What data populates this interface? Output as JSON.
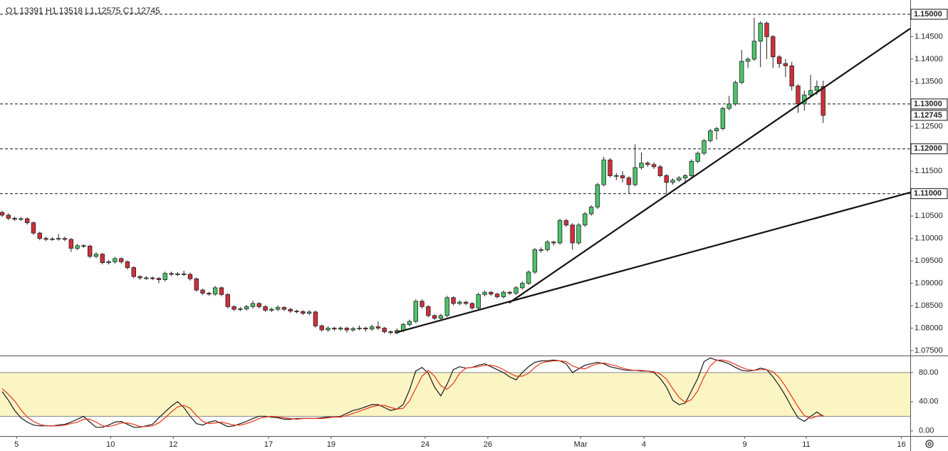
{
  "chart_data": {
    "type": "candlestick",
    "ohlc_legend": "O1.13391  H1.13518  L1.12575  C1.12745",
    "candles": [
      [
        1.1058,
        1.1062,
        1.1048,
        1.1052
      ],
      [
        1.1052,
        1.1056,
        1.1041,
        1.1045
      ],
      [
        1.1045,
        1.1049,
        1.1039,
        1.1043
      ],
      [
        1.1043,
        1.1048,
        1.1039,
        1.1044
      ],
      [
        1.1044,
        1.1047,
        1.1031,
        1.1035
      ],
      [
        1.1035,
        1.1038,
        1.1008,
        1.1012
      ],
      [
        1.1012,
        1.1015,
        1.0996,
        1.1
      ],
      [
        1.1,
        1.1004,
        1.0994,
        1.0998
      ],
      [
        1.0998,
        1.1003,
        1.0995,
        1.0999
      ],
      [
        1.0999,
        1.101,
        1.0995,
        1.1
      ],
      [
        1.1,
        1.1004,
        1.0994,
        1.0998
      ],
      [
        1.0998,
        1.1001,
        1.097,
        1.0978
      ],
      [
        1.0978,
        1.0988,
        1.0974,
        1.0984
      ],
      [
        1.0984,
        1.0987,
        1.0979,
        1.0983
      ],
      [
        1.0983,
        1.0986,
        1.0956,
        1.096
      ],
      [
        1.096,
        1.0969,
        1.0956,
        1.0965
      ],
      [
        1.0965,
        1.0968,
        1.0942,
        1.0946
      ],
      [
        1.0946,
        1.0952,
        1.0942,
        1.0948
      ],
      [
        1.0948,
        1.0959,
        1.0944,
        1.0955
      ],
      [
        1.0955,
        1.0958,
        1.0944,
        1.0948
      ],
      [
        1.0948,
        1.0951,
        1.0931,
        1.0935
      ],
      [
        1.0935,
        1.0938,
        1.0911,
        1.0915
      ],
      [
        1.0915,
        1.0918,
        1.0908,
        1.0912
      ],
      [
        1.0912,
        1.0916,
        1.0908,
        1.0912
      ],
      [
        1.0912,
        1.0915,
        1.0907,
        1.0911
      ],
      [
        1.0911,
        1.0914,
        1.09,
        1.0908
      ],
      [
        1.0908,
        1.0926,
        1.0904,
        1.0922
      ],
      [
        1.0922,
        1.0926,
        1.0916,
        1.092
      ],
      [
        1.092,
        1.0925,
        1.0916,
        1.0921
      ],
      [
        1.0921,
        1.0928,
        1.0916,
        1.092
      ],
      [
        1.092,
        1.0924,
        1.0906,
        1.091
      ],
      [
        1.091,
        1.0913,
        1.0881,
        1.0885
      ],
      [
        1.0885,
        1.0888,
        1.0874,
        1.0878
      ],
      [
        1.0878,
        1.0881,
        1.0872,
        1.0876
      ],
      [
        1.0876,
        1.0894,
        1.0872,
        1.089
      ],
      [
        1.089,
        1.0893,
        1.0871,
        1.0875
      ],
      [
        1.0875,
        1.0878,
        1.0844,
        1.0848
      ],
      [
        1.0848,
        1.0851,
        1.0838,
        1.0842
      ],
      [
        1.0842,
        1.0847,
        1.0838,
        1.0843
      ],
      [
        1.0843,
        1.0852,
        1.0839,
        1.0848
      ],
      [
        1.0848,
        1.0861,
        1.0844,
        1.0855
      ],
      [
        1.0855,
        1.0858,
        1.0844,
        1.0848
      ],
      [
        1.0848,
        1.0851,
        1.0836,
        1.084
      ],
      [
        1.084,
        1.0846,
        1.0836,
        1.0842
      ],
      [
        1.0842,
        1.0851,
        1.0838,
        1.0846
      ],
      [
        1.0846,
        1.0849,
        1.0838,
        1.0842
      ],
      [
        1.0842,
        1.0845,
        1.0834,
        1.0838
      ],
      [
        1.0838,
        1.0841,
        1.0833,
        1.0837
      ],
      [
        1.0837,
        1.084,
        1.0829,
        1.0833
      ],
      [
        1.0833,
        1.084,
        1.0829,
        1.0836
      ],
      [
        1.0836,
        1.0839,
        1.0801,
        1.0805
      ],
      [
        1.0805,
        1.0808,
        1.0792,
        1.0796
      ],
      [
        1.0796,
        1.0804,
        1.0792,
        1.08
      ],
      [
        1.08,
        1.0803,
        1.0794,
        1.0798
      ],
      [
        1.0798,
        1.0804,
        1.0794,
        1.08
      ],
      [
        1.08,
        1.0803,
        1.079,
        1.0796
      ],
      [
        1.0796,
        1.0803,
        1.0792,
        1.0799
      ],
      [
        1.0799,
        1.0806,
        1.0795,
        1.08
      ],
      [
        1.08,
        1.0803,
        1.0792,
        1.0798
      ],
      [
        1.0798,
        1.0808,
        1.0794,
        1.0803
      ],
      [
        1.0803,
        1.0815,
        1.0796,
        1.08
      ],
      [
        1.08,
        1.0803,
        1.0788,
        1.0792
      ],
      [
        1.0792,
        1.0795,
        1.0786,
        1.079
      ],
      [
        1.079,
        1.0799,
        1.0786,
        1.0795
      ],
      [
        1.0795,
        1.0812,
        1.0791,
        1.0808
      ],
      [
        1.0808,
        1.0819,
        1.0804,
        1.0815
      ],
      [
        1.0815,
        1.0864,
        1.0811,
        1.086
      ],
      [
        1.086,
        1.0864,
        1.0844,
        1.0848
      ],
      [
        1.0848,
        1.0851,
        1.0824,
        1.0828
      ],
      [
        1.0828,
        1.0831,
        1.0818,
        1.0822
      ],
      [
        1.0822,
        1.0832,
        1.0818,
        1.0828
      ],
      [
        1.0828,
        1.0872,
        1.0824,
        1.0868
      ],
      [
        1.0868,
        1.0871,
        1.0851,
        1.0855
      ],
      [
        1.0855,
        1.0862,
        1.0851,
        1.0858
      ],
      [
        1.0858,
        1.0861,
        1.0851,
        1.0855
      ],
      [
        1.0855,
        1.0858,
        1.0841,
        1.0845
      ],
      [
        1.0845,
        1.0879,
        1.0841,
        1.0875
      ],
      [
        1.0875,
        1.0884,
        1.0871,
        1.088
      ],
      [
        1.088,
        1.0883,
        1.0872,
        1.0876
      ],
      [
        1.0876,
        1.0879,
        1.0866,
        1.087
      ],
      [
        1.087,
        1.0884,
        1.0866,
        1.088
      ],
      [
        1.088,
        1.0883,
        1.0874,
        1.0878
      ],
      [
        1.0878,
        1.0894,
        1.0874,
        1.089
      ],
      [
        1.089,
        1.0904,
        1.0886,
        1.09
      ],
      [
        1.09,
        1.0929,
        1.0896,
        1.0925
      ],
      [
        1.0925,
        1.0979,
        1.0921,
        1.0975
      ],
      [
        1.0975,
        1.098,
        1.0968,
        1.0975
      ],
      [
        1.0975,
        1.0996,
        1.0971,
        1.0992
      ],
      [
        1.0992,
        1.0995,
        1.0984,
        1.099
      ],
      [
        1.099,
        1.1044,
        1.0986,
        1.104
      ],
      [
        1.104,
        1.1044,
        1.1026,
        1.103
      ],
      [
        1.103,
        1.1034,
        1.0975,
        1.099
      ],
      [
        1.099,
        1.1034,
        1.0986,
        1.103
      ],
      [
        1.103,
        1.1059,
        1.1026,
        1.1055
      ],
      [
        1.1055,
        1.1074,
        1.1051,
        1.107
      ],
      [
        1.107,
        1.1124,
        1.1066,
        1.112
      ],
      [
        1.112,
        1.1182,
        1.1116,
        1.1175
      ],
      [
        1.1175,
        1.1179,
        1.1136,
        1.114
      ],
      [
        1.114,
        1.1146,
        1.113,
        1.114
      ],
      [
        1.114,
        1.115,
        1.1125,
        1.1135
      ],
      [
        1.1135,
        1.1139,
        1.11,
        1.112
      ],
      [
        1.112,
        1.121,
        1.1116,
        1.1158
      ],
      [
        1.1158,
        1.1192,
        1.1154,
        1.1168
      ],
      [
        1.1168,
        1.1172,
        1.116,
        1.1165
      ],
      [
        1.1165,
        1.117,
        1.1155,
        1.116
      ],
      [
        1.116,
        1.1164,
        1.1136,
        1.114
      ],
      [
        1.114,
        1.1144,
        1.11,
        1.1125
      ],
      [
        1.1125,
        1.1134,
        1.112,
        1.113
      ],
      [
        1.113,
        1.1139,
        1.1126,
        1.1135
      ],
      [
        1.1135,
        1.1144,
        1.1121,
        1.114
      ],
      [
        1.114,
        1.1176,
        1.1136,
        1.1172
      ],
      [
        1.1172,
        1.1194,
        1.1168,
        1.119
      ],
      [
        1.119,
        1.1222,
        1.1186,
        1.1218
      ],
      [
        1.1218,
        1.1244,
        1.1214,
        1.124
      ],
      [
        1.124,
        1.1249,
        1.122,
        1.1245
      ],
      [
        1.1245,
        1.1294,
        1.1241,
        1.129
      ],
      [
        1.129,
        1.1318,
        1.1286,
        1.13
      ],
      [
        1.13,
        1.1352,
        1.1296,
        1.1348
      ],
      [
        1.1348,
        1.142,
        1.1344,
        1.1395
      ],
      [
        1.1395,
        1.1404,
        1.138,
        1.14
      ],
      [
        1.14,
        1.1492,
        1.1396,
        1.144
      ],
      [
        1.144,
        1.1484,
        1.1382,
        1.148
      ],
      [
        1.148,
        1.1484,
        1.14,
        1.145
      ],
      [
        1.145,
        1.1454,
        1.138,
        1.1405
      ],
      [
        1.1405,
        1.1409,
        1.138,
        1.139
      ],
      [
        1.139,
        1.14,
        1.136,
        1.1385
      ],
      [
        1.1385,
        1.1394,
        1.133,
        1.134
      ],
      [
        1.134,
        1.1344,
        1.128,
        1.13
      ],
      [
        1.13,
        1.133,
        1.1285,
        1.132
      ],
      [
        1.132,
        1.1365,
        1.1316,
        1.133
      ],
      [
        1.133,
        1.1352,
        1.132,
        1.13391
      ],
      [
        1.13391,
        1.13518,
        1.12575,
        1.12745
      ]
    ],
    "up_color": "#4cc46c",
    "down_color": "#d22f3a",
    "xlim": [
      -0.34,
      144.9
    ],
    "xticks": [
      {
        "value": 2.3,
        "label": "5"
      },
      {
        "value": 17.3,
        "label": "10"
      },
      {
        "value": 27.3,
        "label": "12"
      },
      {
        "value": 42.5,
        "label": "17"
      },
      {
        "value": 52.5,
        "label": "19"
      },
      {
        "value": 67.5,
        "label": "24"
      },
      {
        "value": 77.5,
        "label": "26"
      },
      {
        "value": 92.3,
        "label": "Mar"
      },
      {
        "value": 102.4,
        "label": "4"
      },
      {
        "value": 118.5,
        "label": "9"
      },
      {
        "value": 128.3,
        "label": "11"
      },
      {
        "value": 143.5,
        "label": "16"
      }
    ],
    "ylim": [
      1.07389,
      1.15318
    ],
    "yticks": [
      {
        "value": 1.075,
        "label": "1.07500"
      },
      {
        "value": 1.08,
        "label": "1.08000"
      },
      {
        "value": 1.085,
        "label": "1.08500"
      },
      {
        "value": 1.09,
        "label": "1.09000"
      },
      {
        "value": 1.095,
        "label": "1.09500"
      },
      {
        "value": 1.1,
        "label": "1.10000"
      },
      {
        "value": 1.105,
        "label": "1.10500"
      },
      {
        "value": 1.115,
        "label": "1.11500"
      },
      {
        "value": 1.125,
        "label": "1.12500"
      },
      {
        "value": 1.135,
        "label": "1.13500"
      },
      {
        "value": 1.14,
        "label": "1.14000"
      },
      {
        "value": 1.145,
        "label": "1.14500"
      }
    ],
    "hlines": [
      {
        "value": 1.15,
        "label": "1.15000"
      },
      {
        "value": 1.13,
        "label": "1.13000"
      },
      {
        "value": 1.12,
        "label": "1.12000"
      },
      {
        "value": 1.11,
        "label": "1.11000"
      }
    ],
    "last_price": {
      "value": 1.12745,
      "label": "1.12745"
    },
    "trendlines": [
      {
        "x": [
          62.7,
          144.9
        ],
        "y": [
          1.07897,
          1.11027
        ]
      },
      {
        "x": [
          80.9,
          144.9
        ],
        "y": [
          1.08564,
          1.14682
        ]
      }
    ],
    "stochastic": {
      "ylim": [
        -7,
        102.3
      ],
      "yticks": [
        {
          "value": 0,
          "label": "0.00"
        },
        {
          "value": 40,
          "label": "40.00"
        },
        {
          "value": 80,
          "label": "80.00"
        }
      ],
      "band": [
        20,
        80
      ],
      "band_color": "#fbf5c4",
      "series": [
        {
          "color": "#1a1a1a",
          "values": [
            54,
            42,
            28,
            18,
            12,
            8,
            7,
            7,
            7,
            8,
            9,
            12,
            16,
            20,
            12,
            5,
            5,
            8,
            12,
            13,
            9,
            5,
            5,
            7,
            9,
            18,
            26,
            34,
            40,
            32,
            20,
            10,
            8,
            12,
            14,
            10,
            6,
            7,
            10,
            13,
            17,
            20,
            20,
            19,
            18,
            16,
            16,
            17,
            17,
            17,
            17,
            18,
            19,
            19,
            20,
            24,
            28,
            30,
            33,
            36,
            36,
            32,
            28,
            30,
            36,
            56,
            82,
            87,
            79,
            60,
            48,
            64,
            84,
            88,
            86,
            87,
            90,
            92,
            88,
            84,
            80,
            74,
            70,
            80,
            88,
            94,
            96,
            96,
            97,
            96,
            92,
            80,
            85,
            90,
            92,
            94,
            92,
            88,
            86,
            84,
            83,
            83,
            82,
            82,
            80,
            72,
            60,
            42,
            36,
            38,
            55,
            72,
            95,
            100,
            97,
            95,
            92,
            87,
            83,
            82,
            83,
            86,
            84,
            74,
            62,
            48,
            32,
            18,
            13,
            20,
            26,
            20
          ]
        },
        {
          "color": "#e8341c",
          "values": [
            58,
            50,
            41,
            29,
            19,
            13,
            9,
            7,
            7,
            7,
            8,
            10,
            12,
            16,
            16,
            12,
            7,
            6,
            8,
            11,
            11,
            9,
            6,
            6,
            7,
            11,
            18,
            26,
            33,
            35,
            31,
            21,
            13,
            10,
            11,
            12,
            10,
            8,
            8,
            10,
            13,
            17,
            19,
            20,
            19,
            18,
            17,
            16,
            17,
            17,
            17,
            17,
            18,
            19,
            19,
            21,
            24,
            27,
            30,
            33,
            35,
            35,
            32,
            30,
            31,
            41,
            58,
            75,
            83,
            75,
            62,
            57,
            65,
            79,
            86,
            87,
            88,
            90,
            90,
            88,
            84,
            79,
            75,
            75,
            79,
            87,
            93,
            95,
            96,
            96,
            95,
            89,
            86,
            85,
            89,
            92,
            93,
            91,
            89,
            86,
            84,
            83,
            83,
            82,
            81,
            78,
            71,
            58,
            46,
            39,
            43,
            55,
            74,
            89,
            97,
            97,
            95,
            91,
            87,
            84,
            83,
            84,
            84,
            81,
            73,
            61,
            47,
            33,
            21,
            17,
            20,
            22
          ]
        }
      ]
    }
  }
}
